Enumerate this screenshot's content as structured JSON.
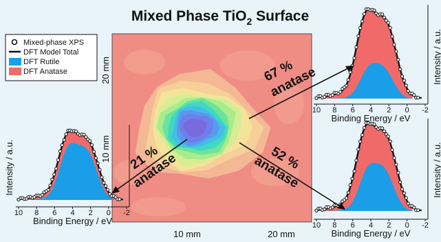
{
  "figure": {
    "title_main": "Mixed Phase TiO",
    "title_sub": "2",
    "title_end": " Surface"
  },
  "legend": {
    "items": [
      {
        "label": "Mixed-phase XPS",
        "symbol": "circle",
        "color": "#000000"
      },
      {
        "label": "DFT Model Total",
        "symbol": "line",
        "color": "#000000"
      },
      {
        "label": "DFT Rutile",
        "symbol": "box",
        "color": "#1a9ee8"
      },
      {
        "label": "DFT Anatase",
        "symbol": "box",
        "color": "#f06a6a"
      }
    ]
  },
  "colors": {
    "rutile": "#1a9ee8",
    "anatase": "#f06a6a",
    "background": "#e8f3fa"
  },
  "chart_data": [
    {
      "type": "heatmap",
      "xlabel_ticks": [
        "10 mm",
        "20 mm"
      ],
      "ylabel_ticks": [
        "10 mm",
        "20 mm"
      ],
      "x_tick_values": [
        10,
        20
      ],
      "y_tick_values": [
        10,
        20
      ],
      "background_level": "anatase-rich",
      "min_region": "blue/purple (rutile-rich) center near 10 mm, 10 mm"
    },
    {
      "type": "area",
      "name": "right-top",
      "annotation_value": "67 %",
      "annotation_label": "anatase",
      "xlabel": "Binding Energy / eV",
      "ylabel": "Intensity / a.u.",
      "xticks": [
        "10",
        "8",
        "6",
        "4",
        "2",
        "0",
        "-2"
      ],
      "xlim": [
        10,
        -2
      ],
      "anatase_fraction": 0.67
    },
    {
      "type": "area",
      "name": "right-bottom",
      "annotation_value": "52 %",
      "annotation_label": "anatase",
      "xlabel": "Binding Energy / eV",
      "ylabel": "Intensity / a.u.",
      "xticks": [
        "10",
        "8",
        "6",
        "4",
        "2",
        "0",
        "-2"
      ],
      "xlim": [
        10,
        -2
      ],
      "anatase_fraction": 0.52
    },
    {
      "type": "area",
      "name": "left",
      "annotation_value": "21 %",
      "annotation_label": "anatase",
      "xlabel": "Binding Energy / eV",
      "ylabel": "Intensity / a.u.",
      "xticks": [
        "10",
        "8",
        "6",
        "4",
        "2",
        "0",
        "-2"
      ],
      "xlim": [
        10,
        -2
      ],
      "anatase_fraction": 0.21
    }
  ]
}
